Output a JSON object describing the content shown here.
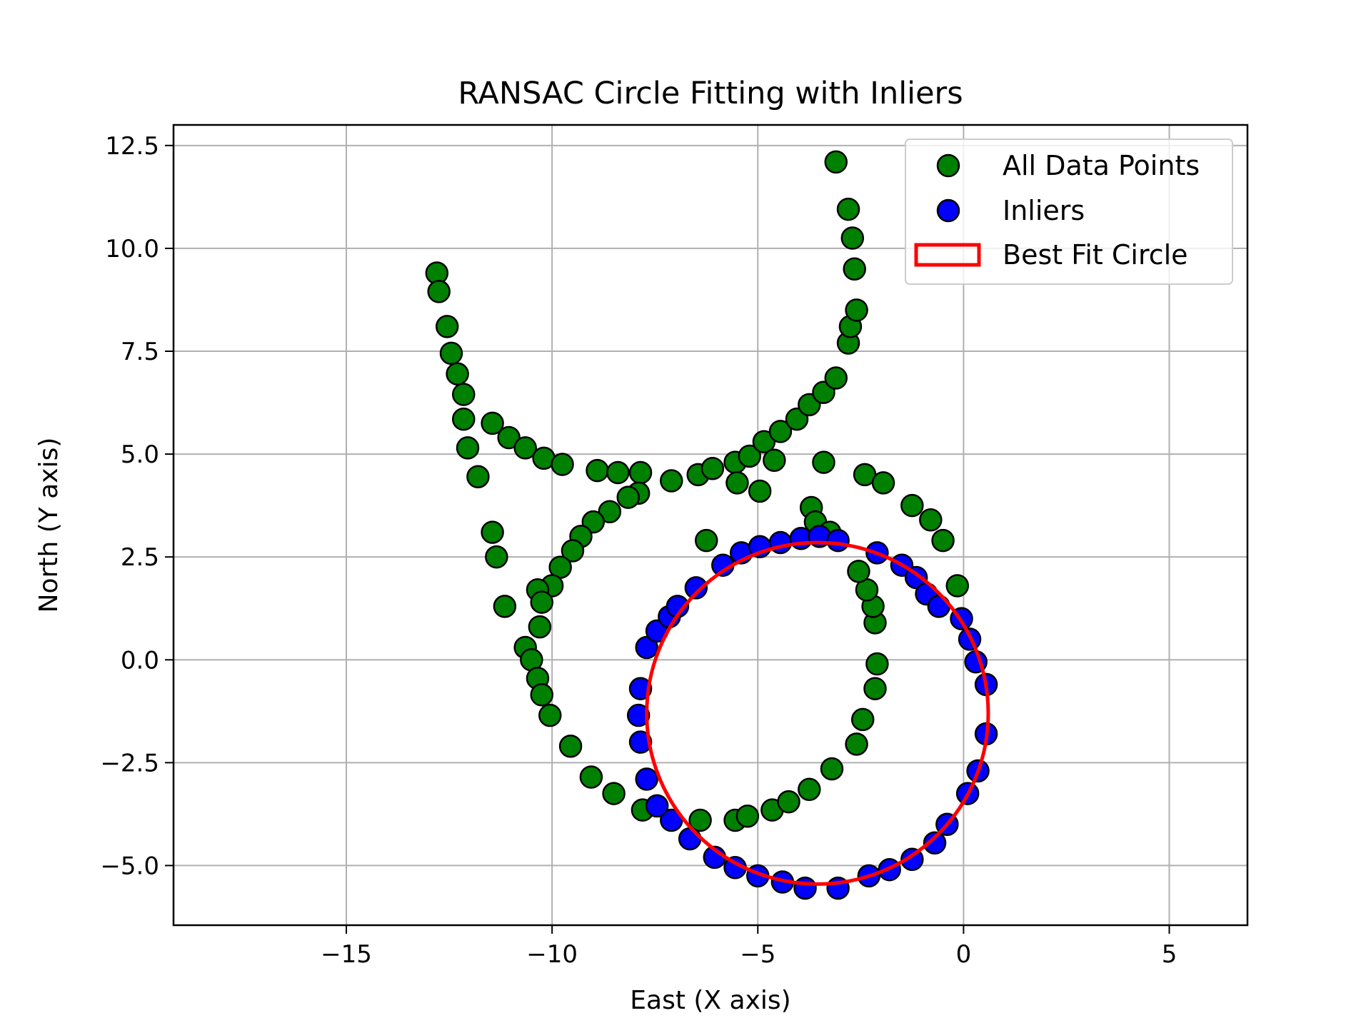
{
  "chart_data": {
    "type": "scatter",
    "title": "RANSAC Circle Fitting with Inliers",
    "xlabel": "East (X axis)",
    "ylabel": "North (Y axis)",
    "xlim": [
      -19.2,
      6.9
    ],
    "ylim": [
      -6.45,
      13.0
    ],
    "xticks": [
      -15,
      -10,
      -5,
      0,
      5
    ],
    "xtick_labels": [
      "−15",
      "−10",
      "−5",
      "0",
      "5"
    ],
    "yticks": [
      -5.0,
      -2.5,
      0.0,
      2.5,
      5.0,
      7.5,
      10.0,
      12.5
    ],
    "ytick_labels": [
      "−5.0",
      "−2.5",
      "0.0",
      "2.5",
      "5.0",
      "7.5",
      "10.0",
      "12.5"
    ],
    "grid": true,
    "legend_position": "top-right",
    "colors": {
      "all_points": "#008000",
      "inliers": "#0000ff",
      "circle": "#ff0000",
      "marker_edge": "#000000",
      "grid": "#b0b0b0"
    },
    "series": [
      {
        "name": "All Data Points",
        "type": "scatter",
        "color": "#008000",
        "points": [
          [
            -12.8,
            9.4
          ],
          [
            -12.75,
            8.95
          ],
          [
            -12.55,
            8.1
          ],
          [
            -12.45,
            7.45
          ],
          [
            -12.3,
            6.95
          ],
          [
            -12.15,
            6.45
          ],
          [
            -12.15,
            5.85
          ],
          [
            -12.05,
            5.15
          ],
          [
            -11.8,
            4.45
          ],
          [
            -11.45,
            5.75
          ],
          [
            -11.05,
            5.4
          ],
          [
            -10.65,
            5.15
          ],
          [
            -10.2,
            4.9
          ],
          [
            -9.75,
            4.75
          ],
          [
            -8.9,
            4.6
          ],
          [
            -8.4,
            4.55
          ],
          [
            -7.85,
            4.55
          ],
          [
            -7.1,
            4.35
          ],
          [
            -6.45,
            4.5
          ],
          [
            -6.1,
            4.65
          ],
          [
            -5.55,
            4.8
          ],
          [
            -5.2,
            4.95
          ],
          [
            -5.5,
            4.3
          ],
          [
            -4.85,
            5.3
          ],
          [
            -4.6,
            4.85
          ],
          [
            -4.45,
            5.55
          ],
          [
            -4.05,
            5.85
          ],
          [
            -3.75,
            6.2
          ],
          [
            -3.4,
            6.5
          ],
          [
            -3.1,
            6.85
          ],
          [
            -2.8,
            7.7
          ],
          [
            -2.75,
            8.1
          ],
          [
            -2.6,
            8.5
          ],
          [
            -2.65,
            9.5
          ],
          [
            -2.7,
            10.25
          ],
          [
            -2.8,
            10.95
          ],
          [
            -3.1,
            12.1
          ],
          [
            -3.4,
            4.8
          ],
          [
            -2.4,
            4.5
          ],
          [
            -1.95,
            4.3
          ],
          [
            -1.25,
            3.75
          ],
          [
            -0.8,
            3.4
          ],
          [
            -0.5,
            2.9
          ],
          [
            -0.15,
            1.8
          ],
          [
            -11.45,
            3.1
          ],
          [
            -11.35,
            2.5
          ],
          [
            -11.15,
            1.3
          ],
          [
            -4.95,
            4.1
          ],
          [
            -7.9,
            4.05
          ],
          [
            -8.15,
            3.95
          ],
          [
            -8.6,
            3.6
          ],
          [
            -9.0,
            3.35
          ],
          [
            -9.3,
            3.0
          ],
          [
            -9.5,
            2.65
          ],
          [
            -9.8,
            2.25
          ],
          [
            -10.0,
            1.8
          ],
          [
            -10.35,
            1.7
          ],
          [
            -10.25,
            1.4
          ],
          [
            -10.3,
            0.8
          ],
          [
            -10.65,
            0.3
          ],
          [
            -10.5,
            0.0
          ],
          [
            -10.35,
            -0.45
          ],
          [
            -10.25,
            -0.85
          ],
          [
            -10.05,
            -1.35
          ],
          [
            -9.55,
            -2.1
          ],
          [
            -9.05,
            -2.85
          ],
          [
            -8.5,
            -3.25
          ],
          [
            -7.8,
            -3.65
          ],
          [
            -7.45,
            -3.55
          ],
          [
            -6.4,
            -3.9
          ],
          [
            -5.55,
            -3.9
          ],
          [
            -5.25,
            -3.8
          ],
          [
            -4.65,
            -3.65
          ],
          [
            -4.25,
            -3.45
          ],
          [
            -3.75,
            -3.15
          ],
          [
            -3.2,
            -2.65
          ],
          [
            -2.6,
            -2.05
          ],
          [
            -2.45,
            -1.45
          ],
          [
            -2.15,
            -0.7
          ],
          [
            -2.1,
            -0.1
          ],
          [
            -2.15,
            0.9
          ],
          [
            -2.2,
            1.3
          ],
          [
            -2.35,
            1.7
          ],
          [
            -2.55,
            2.15
          ],
          [
            -3.7,
            3.7
          ],
          [
            -3.6,
            3.35
          ],
          [
            -3.25,
            3.1
          ],
          [
            -6.25,
            2.9
          ]
        ]
      },
      {
        "name": "Inliers",
        "type": "scatter",
        "color": "#0000ff",
        "points": [
          [
            -7.7,
            0.3
          ],
          [
            -7.45,
            0.7
          ],
          [
            -7.15,
            1.05
          ],
          [
            -6.95,
            1.3
          ],
          [
            -6.5,
            1.75
          ],
          [
            -5.85,
            2.3
          ],
          [
            -5.4,
            2.6
          ],
          [
            -4.95,
            2.75
          ],
          [
            -4.45,
            2.85
          ],
          [
            -3.95,
            2.95
          ],
          [
            -3.5,
            3.0
          ],
          [
            -3.05,
            2.9
          ],
          [
            -2.1,
            2.6
          ],
          [
            -1.5,
            2.3
          ],
          [
            -1.15,
            2.0
          ],
          [
            -0.9,
            1.6
          ],
          [
            -0.6,
            1.3
          ],
          [
            -0.05,
            1.0
          ],
          [
            0.15,
            0.5
          ],
          [
            0.3,
            -0.05
          ],
          [
            0.55,
            -0.6
          ],
          [
            0.55,
            -1.8
          ],
          [
            0.35,
            -2.7
          ],
          [
            0.1,
            -3.25
          ],
          [
            -0.4,
            -4.0
          ],
          [
            -0.7,
            -4.45
          ],
          [
            -1.25,
            -4.85
          ],
          [
            -1.8,
            -5.1
          ],
          [
            -2.3,
            -5.25
          ],
          [
            -3.05,
            -5.55
          ],
          [
            -3.85,
            -5.55
          ],
          [
            -4.4,
            -5.4
          ],
          [
            -5.0,
            -5.25
          ],
          [
            -5.55,
            -5.05
          ],
          [
            -6.05,
            -4.8
          ],
          [
            -6.65,
            -4.35
          ],
          [
            -7.1,
            -3.9
          ],
          [
            -7.45,
            -3.55
          ],
          [
            -7.7,
            -2.9
          ],
          [
            -7.85,
            -2.0
          ],
          [
            -7.9,
            -1.35
          ],
          [
            -7.85,
            -0.7
          ]
        ]
      },
      {
        "name": "Best Fit Circle",
        "type": "circle",
        "color": "#ff0000",
        "center": [
          -3.55,
          -1.3
        ],
        "radius": 4.15
      }
    ]
  }
}
